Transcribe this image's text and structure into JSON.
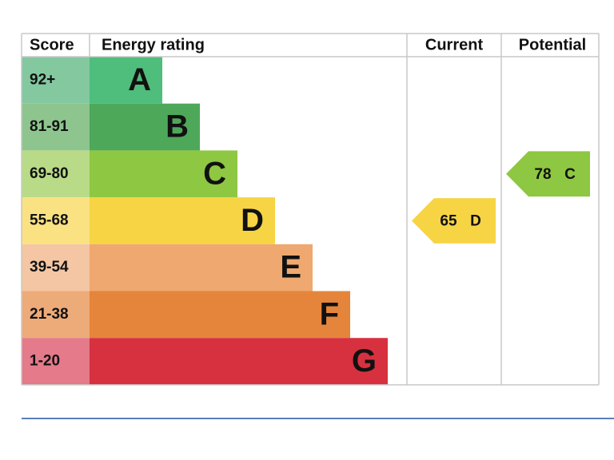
{
  "header": {
    "score": "Score",
    "rating": "Energy rating",
    "current": "Current",
    "potential": "Potential"
  },
  "bands": [
    {
      "score": "92+",
      "letter": "A",
      "color": "#4fbd7b",
      "score_color": "#84c8a0"
    },
    {
      "score": "81-91",
      "letter": "B",
      "color": "#4ea85a",
      "score_color": "#8ec58f"
    },
    {
      "score": "69-80",
      "letter": "C",
      "color": "#8ec742",
      "score_color": "#b9db88"
    },
    {
      "score": "55-68",
      "letter": "D",
      "color": "#f6d444",
      "score_color": "#fae283"
    },
    {
      "score": "39-54",
      "letter": "E",
      "color": "#efa86f",
      "score_color": "#f4c6a3"
    },
    {
      "score": "21-38",
      "letter": "F",
      "color": "#e5853b",
      "score_color": "#eeab7a"
    },
    {
      "score": "1-20",
      "letter": "G",
      "color": "#d7313f",
      "score_color": "#e47a8a"
    }
  ],
  "current": {
    "value": 65,
    "letter": "D"
  },
  "potential": {
    "value": 78,
    "letter": "C"
  },
  "border_color": "#c8c8c8",
  "rule_color": "#5a7fb8"
}
